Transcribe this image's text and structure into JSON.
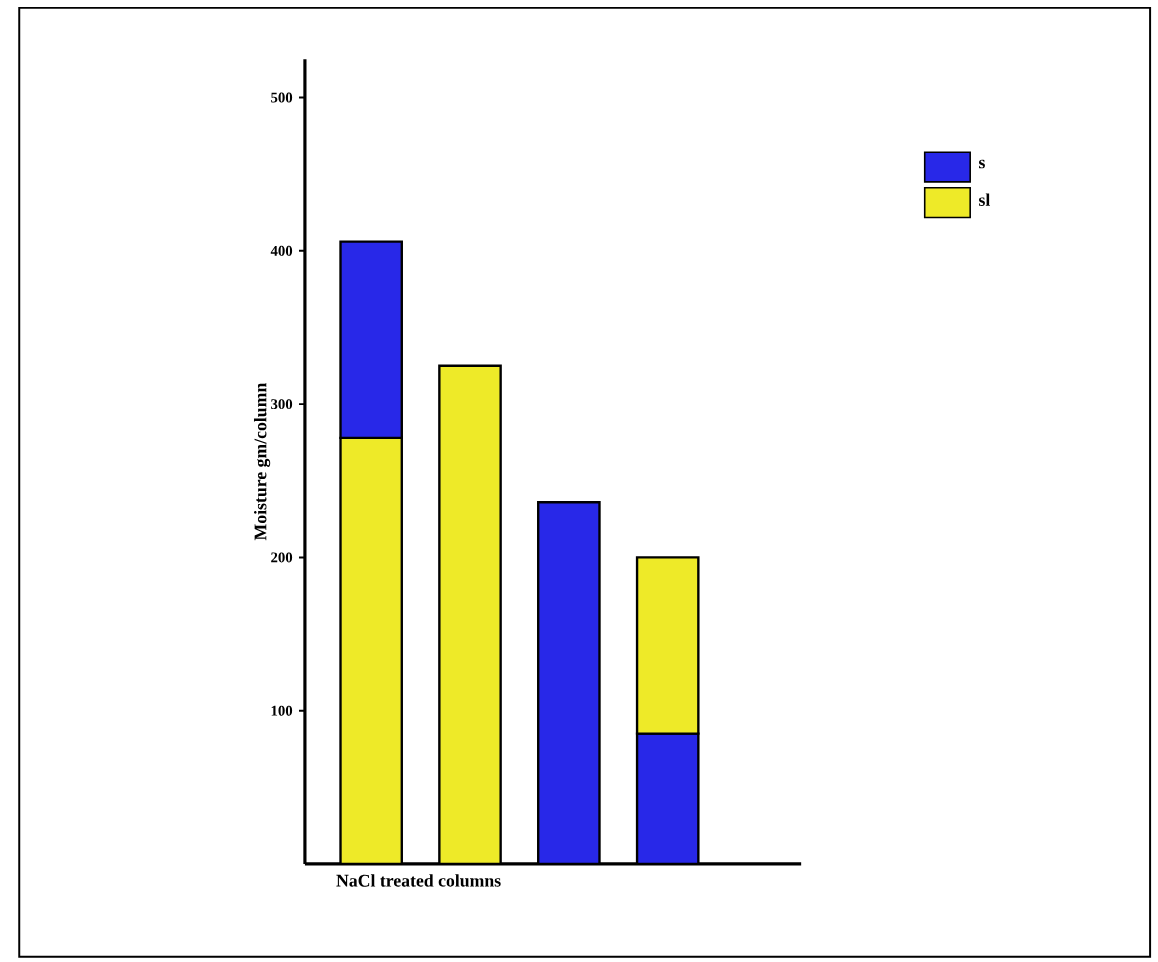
{
  "chart_data": {
    "type": "bar",
    "xlabel": "NaCl treated columns",
    "ylabel": "Moisture gm/column",
    "stacked": true,
    "categories": [
      null,
      null,
      null,
      null
    ],
    "series": [
      {
        "name": "sl",
        "color": "#eeea28",
        "values": [
          278,
          325,
          null,
          null
        ]
      },
      {
        "name": "s",
        "color": "#2828e8",
        "values": [
          128,
          null,
          236,
          85
        ]
      },
      {
        "color": "#eeea28",
        "values": [
          null,
          null,
          null,
          115
        ]
      }
    ],
    "ylim": [
      0,
      525
    ],
    "yticks": [
      100,
      200,
      300,
      400,
      500
    ],
    "legend": "top right"
  }
}
